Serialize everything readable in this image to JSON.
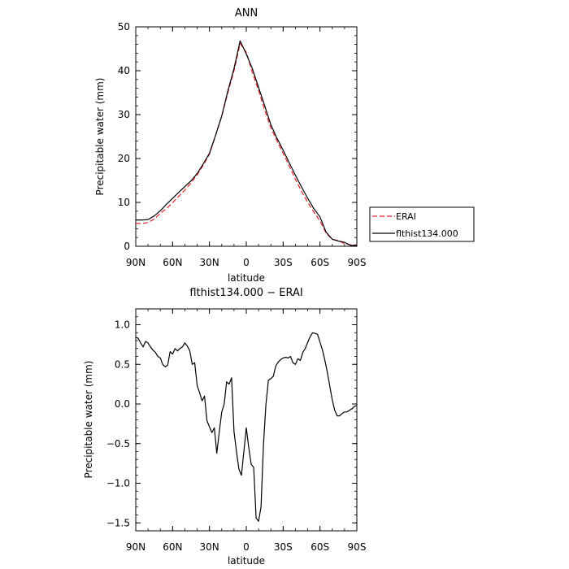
{
  "chart_data": [
    {
      "type": "line",
      "title": "ANN",
      "xlabel": "latitude",
      "ylabel": "Precipitable water (mm)",
      "xlim": [
        90,
        -90
      ],
      "ylim": [
        0,
        50
      ],
      "x_ticks": [
        90,
        60,
        30,
        0,
        -30,
        -60,
        -90
      ],
      "x_tick_labels": [
        "90N",
        "60N",
        "30N",
        "0",
        "30S",
        "60S",
        "90S"
      ],
      "y_ticks": [
        0,
        10,
        20,
        30,
        40,
        50
      ],
      "y_tick_labels": [
        "0",
        "10",
        "20",
        "30",
        "40",
        "50"
      ],
      "grid": false,
      "legend_position": "right",
      "series": [
        {
          "name": "ERAI",
          "color": "#e8202a",
          "dash": "dashed",
          "x": [
            90,
            85,
            80,
            75,
            70,
            65,
            60,
            55,
            50,
            45,
            40,
            35,
            30,
            25,
            20,
            15,
            10,
            5,
            0,
            -5,
            -10,
            -15,
            -20,
            -25,
            -30,
            -35,
            -40,
            -45,
            -50,
            -55,
            -60,
            -65,
            -70,
            -75,
            -80,
            -85,
            -90
          ],
          "y": [
            5.2,
            5.2,
            5.4,
            6.2,
            7.5,
            8.6,
            9.9,
            11.4,
            12.8,
            14.4,
            16.3,
            18.5,
            21.0,
            25.2,
            29.6,
            35.0,
            40.0,
            46.2,
            44.2,
            39.5,
            35.5,
            31.0,
            27.0,
            24.0,
            21.2,
            18.3,
            15.3,
            12.5,
            10.0,
            7.8,
            5.8,
            3.0,
            1.6,
            1.3,
            0.6,
            0.3,
            0.3
          ]
        },
        {
          "name": "flthist134.000",
          "color": "#000000",
          "dash": "solid",
          "x": [
            90,
            85,
            80,
            75,
            70,
            65,
            60,
            55,
            50,
            45,
            40,
            35,
            30,
            25,
            20,
            15,
            10,
            5,
            0,
            -5,
            -10,
            -15,
            -20,
            -25,
            -30,
            -35,
            -40,
            -45,
            -50,
            -55,
            -60,
            -65,
            -70,
            -75,
            -80,
            -85,
            -90
          ],
          "y": [
            6.0,
            6.0,
            6.1,
            6.9,
            8.1,
            9.6,
            10.9,
            12.3,
            13.6,
            14.9,
            16.6,
            18.8,
            21.2,
            25.3,
            29.7,
            35.4,
            40.5,
            46.8,
            43.8,
            40.4,
            36.2,
            32.0,
            27.7,
            24.6,
            21.9,
            19.0,
            16.2,
            13.5,
            10.9,
            8.6,
            6.7,
            3.2,
            1.6,
            1.2,
            0.9,
            0.2,
            0.2
          ]
        }
      ]
    },
    {
      "type": "line",
      "title": "flthist134.000 − ERAI",
      "xlabel": "latitude",
      "ylabel": "Precipitable water (mm)",
      "xlim": [
        90,
        -90
      ],
      "ylim": [
        -1.6,
        1.2
      ],
      "x_ticks": [
        90,
        60,
        30,
        0,
        -30,
        -60,
        -90
      ],
      "x_tick_labels": [
        "90N",
        "60N",
        "30N",
        "0",
        "30S",
        "60S",
        "90S"
      ],
      "y_ticks": [
        1.0,
        0.5,
        0.0,
        -0.5,
        -1.0,
        -1.5
      ],
      "y_tick_labels": [
        "1.0",
        "0.5",
        "0.0",
        "−0.5",
        "−1.0",
        "−1.5"
      ],
      "grid": false,
      "series": [
        {
          "color": "#000000",
          "dash": "solid",
          "x": [
            90,
            88,
            86,
            84,
            82,
            80,
            78,
            76,
            74,
            72,
            70,
            68,
            66,
            64,
            62,
            60,
            58,
            56,
            54,
            52,
            50,
            48,
            46,
            44,
            42,
            40,
            38,
            36,
            34,
            32,
            30,
            28,
            26,
            24,
            22,
            20,
            18,
            16,
            14,
            12,
            10,
            8,
            6,
            4,
            2,
            0,
            -2,
            -4,
            -6,
            -8,
            -10,
            -12,
            -14,
            -16,
            -18,
            -20,
            -22,
            -24,
            -26,
            -28,
            -30,
            -32,
            -34,
            -36,
            -38,
            -40,
            -42,
            -44,
            -46,
            -48,
            -50,
            -52,
            -54,
            -56,
            -58,
            -60,
            -62,
            -64,
            -66,
            -68,
            -70,
            -72,
            -74,
            -76,
            -78,
            -80,
            -82,
            -84,
            -86,
            -88,
            -90
          ],
          "y": [
            0.84,
            0.83,
            0.77,
            0.72,
            0.79,
            0.77,
            0.72,
            0.68,
            0.65,
            0.6,
            0.58,
            0.5,
            0.47,
            0.49,
            0.66,
            0.63,
            0.7,
            0.67,
            0.7,
            0.72,
            0.77,
            0.73,
            0.67,
            0.5,
            0.52,
            0.23,
            0.14,
            0.04,
            0.1,
            -0.21,
            -0.29,
            -0.36,
            -0.3,
            -0.62,
            -0.35,
            -0.1,
            0.0,
            0.28,
            0.25,
            0.33,
            -0.35,
            -0.6,
            -0.82,
            -0.9,
            -0.6,
            -0.3,
            -0.55,
            -0.76,
            -0.8,
            -1.44,
            -1.48,
            -1.3,
            -0.5,
            0.0,
            0.3,
            0.32,
            0.35,
            0.48,
            0.53,
            0.56,
            0.58,
            0.59,
            0.58,
            0.6,
            0.52,
            0.5,
            0.57,
            0.55,
            0.65,
            0.7,
            0.78,
            0.85,
            0.9,
            0.89,
            0.88,
            0.78,
            0.68,
            0.55,
            0.4,
            0.22,
            0.05,
            -0.08,
            -0.15,
            -0.15,
            -0.12,
            -0.1,
            -0.1,
            -0.08,
            -0.06,
            -0.03,
            -0.02
          ]
        }
      ]
    }
  ]
}
